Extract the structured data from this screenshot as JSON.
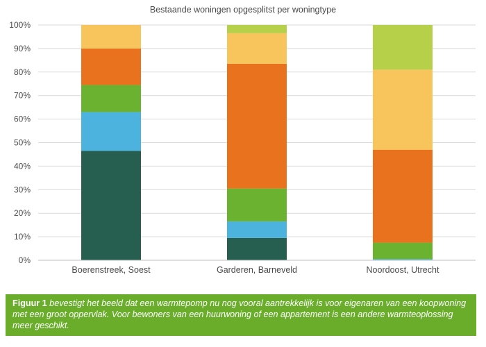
{
  "chart_data": {
    "type": "bar",
    "stacked": true,
    "title": "Bestaande woningen opgesplitst per woningtype",
    "xlabel": "",
    "ylabel": "",
    "ylim": [
      0,
      100
    ],
    "yticks": [
      "0%",
      "10%",
      "20%",
      "30%",
      "40%",
      "50%",
      "60%",
      "70%",
      "80%",
      "90%",
      "100%"
    ],
    "grid": true,
    "legend": "none",
    "categories": [
      "Boerenstreek, Soest",
      "Garderen, Barneveld",
      "Noordoost, Utrecht"
    ],
    "series": [
      {
        "color": "#265f50",
        "values": [
          46.5,
          9.5,
          0.0
        ]
      },
      {
        "color": "#4bb3de",
        "values": [
          16.5,
          7.0,
          0.5
        ]
      },
      {
        "color": "#6ab22f",
        "values": [
          11.5,
          14.0,
          7.0
        ]
      },
      {
        "color": "#e8721d",
        "values": [
          15.5,
          53.0,
          39.5
        ]
      },
      {
        "color": "#f8c55d",
        "values": [
          10.0,
          13.0,
          34.0
        ]
      },
      {
        "color": "#b7d04a",
        "values": [
          0.0,
          3.5,
          19.0
        ]
      }
    ]
  },
  "caption": {
    "lead": "Figuur 1",
    "text": " bevestigt het beeld dat een warmtepomp nu nog vooral aantrekkelijk is voor eigenaren van een koopwoning met een groot oppervlak. Voor bewoners van een huurwoning of een appartement is een andere warmteoplossing meer geschikt.",
    "background": "#69ad2b"
  }
}
